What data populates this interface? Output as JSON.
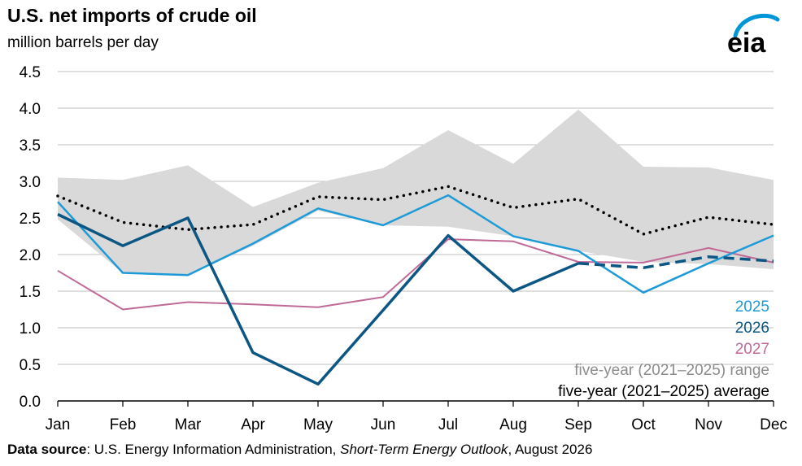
{
  "header": {
    "title": "U.S. net imports of crude oil",
    "subtitle": "million barrels per day"
  },
  "logo": {
    "text": "eia",
    "icon": "eia-logo-icon",
    "color": "#0096d7"
  },
  "source": {
    "label": "Data source",
    "text_before": ": U.S. Energy Information Administration, ",
    "publication": "Short-Term Energy Outlook",
    "text_after": ", August 2026"
  },
  "colors": {
    "s2025": "#1e9bd7",
    "s2026": "#0c5683",
    "s2027": "#c06a98",
    "range_fill": "#d9d9d9",
    "range_label": "#8c8c8c",
    "average": "#000000",
    "grid": "#bfbfbf"
  },
  "chart_data": {
    "type": "line",
    "title": "U.S. net imports of crude oil",
    "ylabel": "million barrels per day",
    "xlabel": "",
    "categories": [
      "Jan",
      "Feb",
      "Mar",
      "Apr",
      "May",
      "Jun",
      "Jul",
      "Aug",
      "Sep",
      "Oct",
      "Nov",
      "Dec"
    ],
    "ylim": [
      0,
      4.5
    ],
    "yticks": [
      "0.0",
      "0.5",
      "1.0",
      "1.5",
      "2.0",
      "2.5",
      "3.0",
      "3.5",
      "4.0",
      "4.5"
    ],
    "grid": true,
    "legend_position": "bottom-right",
    "range": {
      "name": "five-year (2021–2025) range",
      "high": [
        3.05,
        3.02,
        3.22,
        2.65,
        2.98,
        3.18,
        3.7,
        3.24,
        3.98,
        3.2,
        3.19,
        3.02
      ],
      "low": [
        2.48,
        1.75,
        1.72,
        2.12,
        2.6,
        2.4,
        2.38,
        2.25,
        2.05,
        1.9,
        1.87,
        1.8
      ]
    },
    "series": [
      {
        "name": "2025",
        "key": "s2025",
        "style": "solid",
        "values": [
          2.72,
          1.75,
          1.72,
          2.15,
          2.63,
          2.4,
          2.81,
          2.25,
          2.05,
          1.48,
          1.88,
          2.26
        ]
      },
      {
        "name": "2026",
        "key": "s2026",
        "style": "solid-then-dashed",
        "forecast_from_index": 8,
        "values": [
          2.55,
          2.12,
          2.5,
          0.66,
          0.23,
          1.24,
          2.26,
          1.5,
          1.88,
          1.82,
          1.97,
          1.91
        ]
      },
      {
        "name": "2027",
        "key": "s2027",
        "style": "solid",
        "values": [
          1.78,
          1.25,
          1.35,
          1.32,
          1.28,
          1.42,
          2.21,
          2.18,
          1.9,
          1.89,
          2.09,
          1.89
        ]
      },
      {
        "name": "five-year (2021–2025) average",
        "key": "average",
        "style": "dotted",
        "values": [
          2.8,
          2.44,
          2.34,
          2.41,
          2.79,
          2.75,
          2.93,
          2.64,
          2.76,
          2.28,
          2.51,
          2.41
        ]
      }
    ],
    "legend": [
      {
        "label": "2025",
        "key": "s2025"
      },
      {
        "label": "2026",
        "key": "s2026"
      },
      {
        "label": "2027",
        "key": "s2027"
      },
      {
        "label": "five-year (2021–2025) range",
        "key": "range_label"
      },
      {
        "label": "five-year (2021–2025) average",
        "key": "average"
      }
    ]
  }
}
